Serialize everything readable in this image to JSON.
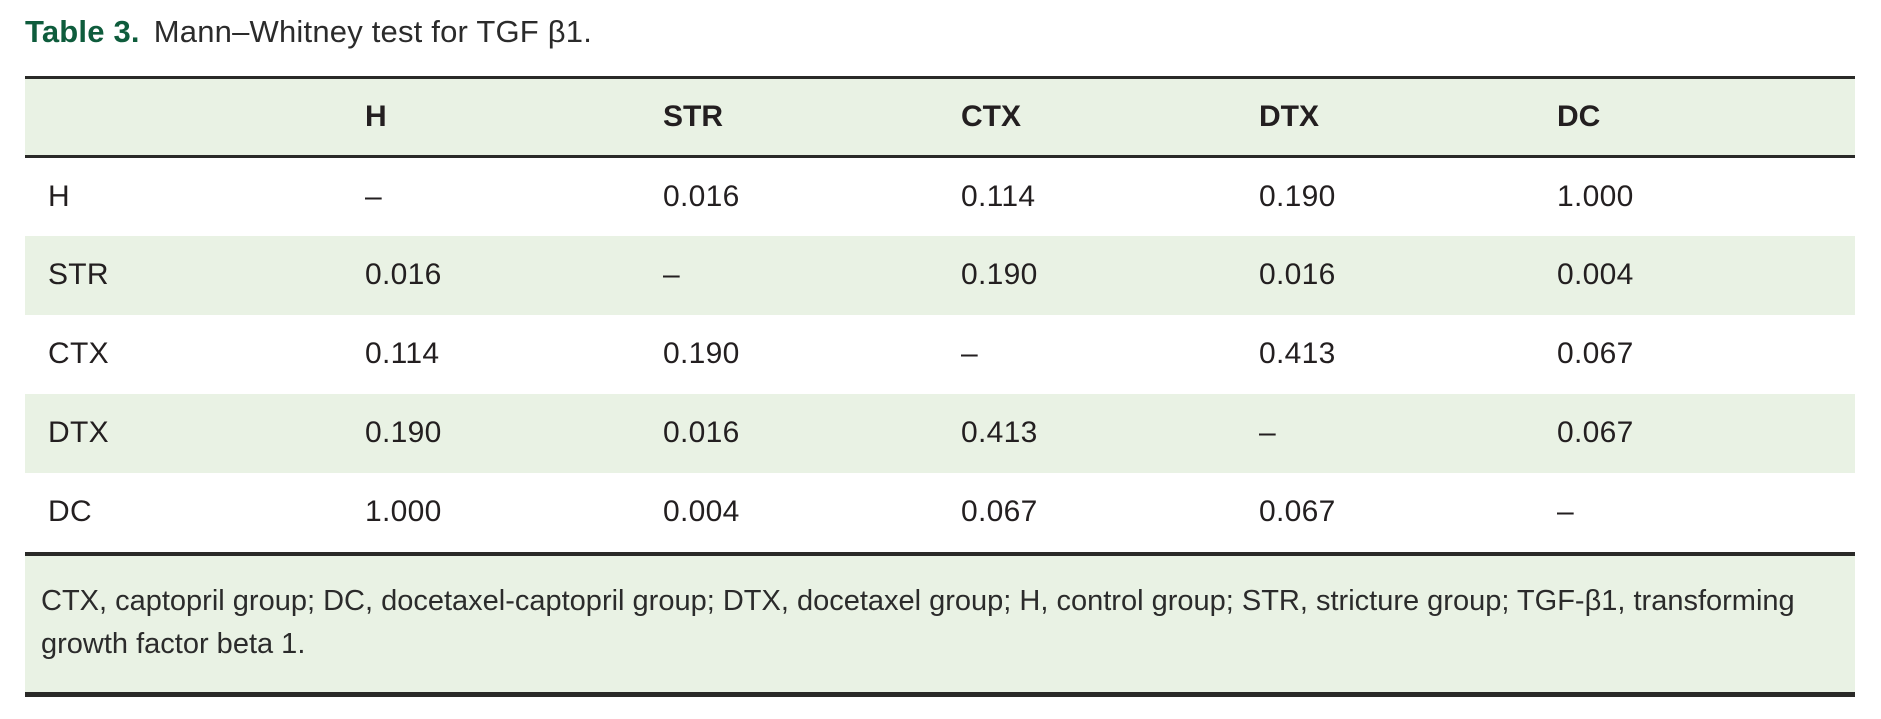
{
  "title": {
    "label": "Table 3.",
    "caption": "Mann–Whitney test for TGF β1."
  },
  "colors": {
    "accent_green": "#0e5c3c",
    "row_green": "#e9f2e4",
    "rule_dark": "#2a2a28",
    "text": "#231f20"
  },
  "chart_data": {
    "type": "table",
    "title": "Mann–Whitney test for TGF β1",
    "column_headers": [
      "",
      "H",
      "STR",
      "CTX",
      "DTX",
      "DC"
    ],
    "rows": [
      {
        "label": "H",
        "values": [
          "–",
          "0.016",
          "0.114",
          "0.190",
          "1.000"
        ]
      },
      {
        "label": "STR",
        "values": [
          "0.016",
          "–",
          "0.190",
          "0.016",
          "0.004"
        ]
      },
      {
        "label": "CTX",
        "values": [
          "0.114",
          "0.190",
          "–",
          "0.413",
          "0.067"
        ]
      },
      {
        "label": "DTX",
        "values": [
          "0.190",
          "0.016",
          "0.413",
          "–",
          "0.067"
        ]
      },
      {
        "label": "DC",
        "values": [
          "1.000",
          "0.004",
          "0.067",
          "0.067",
          "–"
        ]
      }
    ]
  },
  "footnote": "CTX, captopril group; DC, docetaxel-captopril group; DTX, docetaxel group; H, control group; STR, stricture group; TGF-β1, transforming growth factor beta 1."
}
